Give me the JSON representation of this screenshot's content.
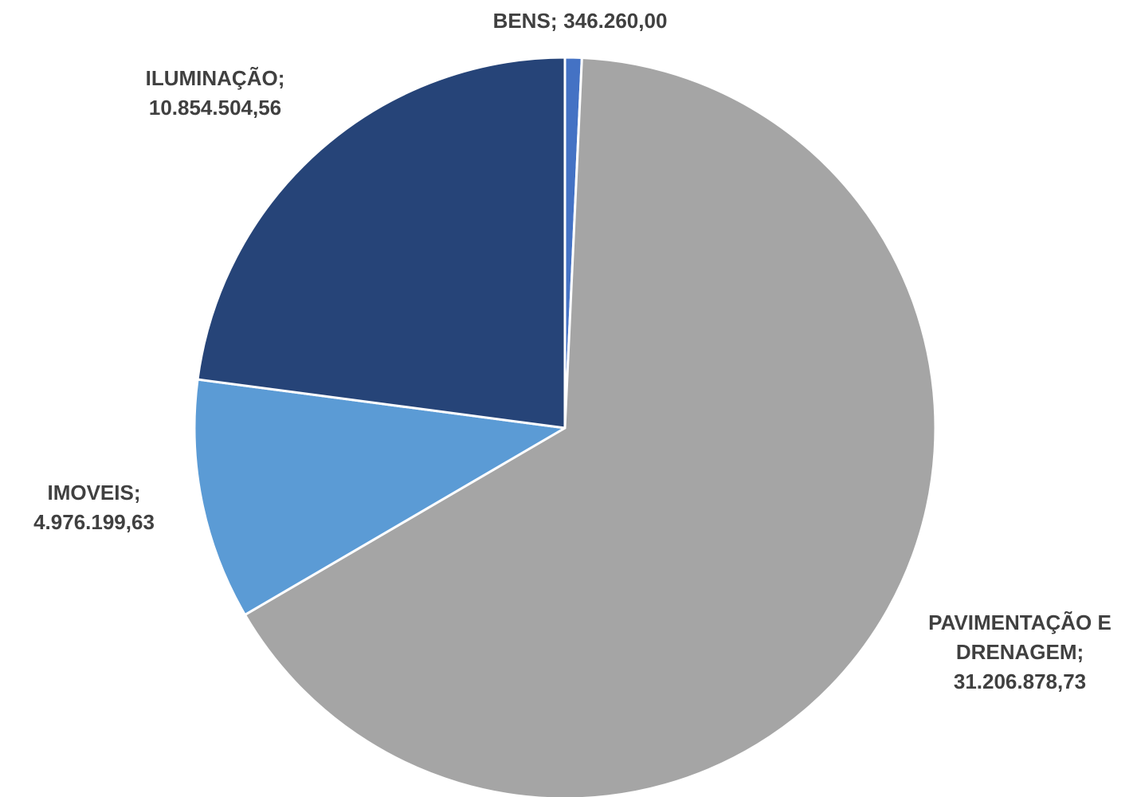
{
  "chart_data": {
    "type": "pie",
    "categories": [
      "BENS",
      "PAVIMENTAÇÃO E DRENAGEM",
      "IMOVEIS",
      "ILUMINAÇÃO"
    ],
    "values": [
      346260.0,
      31206878.73,
      4976199.63,
      10854504.56
    ],
    "value_labels": [
      "346.260,00",
      "31.206.878,73",
      "4.976.199,63",
      "10.854.504,56"
    ],
    "label_separator": ";",
    "colors": [
      "#4472c4",
      "#a5a5a5",
      "#5b9bd5",
      "#264478"
    ]
  }
}
